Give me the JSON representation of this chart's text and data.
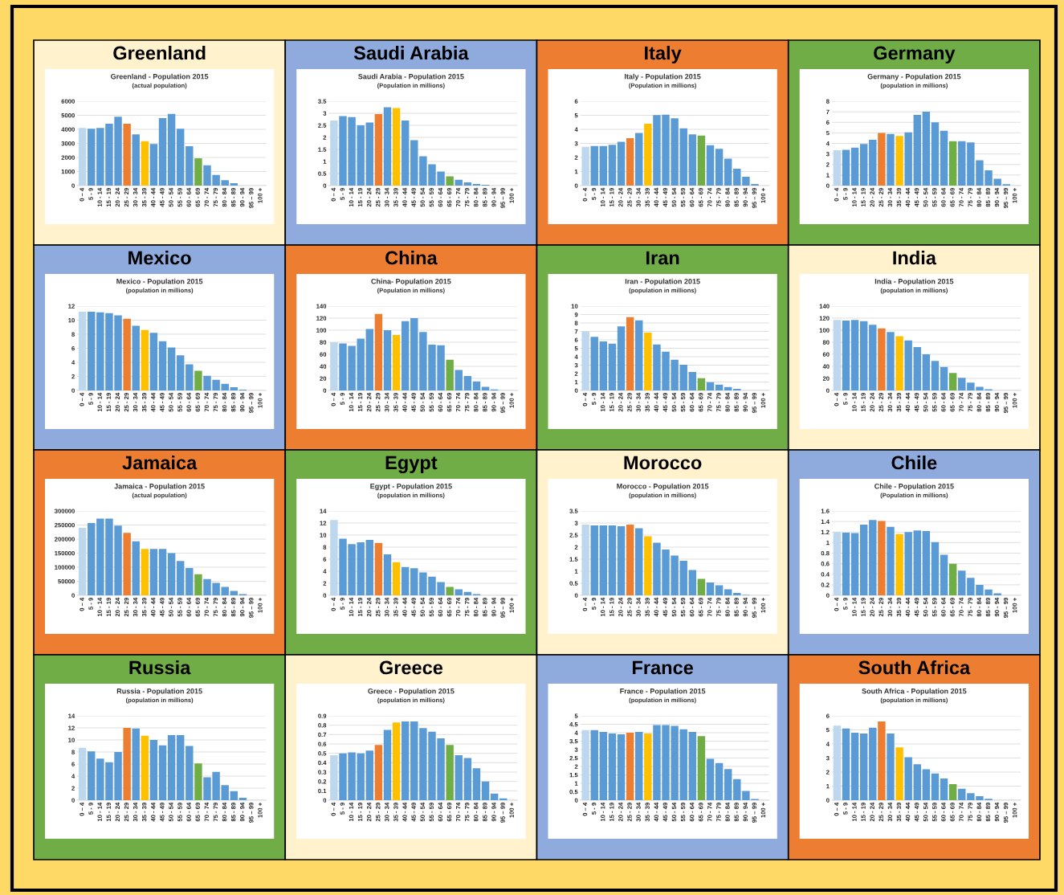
{
  "chart_data": [
    {
      "type": "bar",
      "title": "Greenland",
      "subtitle": "Greenland - Population 2015",
      "annotations": [
        "(actual population)"
      ],
      "categories": [
        "0 – 4",
        "5 - 9",
        "10 - 14",
        "15 - 19",
        "20 - 24",
        "25 - 29",
        "30 - 34",
        "35 - 39",
        "40 - 44",
        "45 - 49",
        "50 - 54",
        "55 - 59",
        "60 - 64",
        "65 - 69",
        "70 - 74",
        "75 - 79",
        "80 - 84",
        "85 - 89",
        "90 - 94",
        "95 – 99",
        "100 +"
      ],
      "values": [
        4100,
        4050,
        4100,
        4400,
        4900,
        4400,
        3650,
        3150,
        2950,
        4800,
        5100,
        4050,
        2800,
        1950,
        1450,
        750,
        380,
        170,
        null,
        null,
        null
      ],
      "colors": [
        "#bdd7ee",
        "#5b9bd5",
        "#5b9bd5",
        "#5b9bd5",
        "#5b9bd5",
        "#ed7d31",
        "#5b9bd5",
        "#ffc000",
        "#5b9bd5",
        "#5b9bd5",
        "#5b9bd5",
        "#5b9bd5",
        "#5b9bd5",
        "#70ad47",
        "#5b9bd5",
        "#5b9bd5",
        "#5b9bd5",
        "#5b9bd5",
        "#5b9bd5",
        "#5b9bd5",
        "#5b9bd5"
      ],
      "ylim": [
        0,
        6000
      ],
      "yticks": [
        0,
        1000,
        2000,
        3000,
        4000,
        5000,
        6000
      ],
      "grid": "y"
    },
    {
      "type": "bar",
      "title": "Saudi Arabia",
      "subtitle": "Saudi Arabia - Population 2015",
      "annotations": [
        "(Population in millions)"
      ],
      "categories": [
        "0 – 4",
        "5 - 9",
        "10 - 14",
        "15 - 19",
        "20 - 24",
        "25 - 29",
        "30 - 34",
        "35 - 39",
        "40 - 44",
        "45 - 49",
        "50 - 54",
        "55 - 59",
        "60 - 64",
        "65 - 69",
        "70 - 74",
        "75 - 79",
        "80 - 84",
        "85 - 89",
        "90 - 94",
        "95 – 99",
        "100 +"
      ],
      "values": [
        2.7,
        2.88,
        2.84,
        2.5,
        2.62,
        2.97,
        3.25,
        3.22,
        2.7,
        1.88,
        1.22,
        0.88,
        0.58,
        0.38,
        0.24,
        0.13,
        0.07,
        0.03,
        null,
        null,
        null
      ],
      "colors": [
        "#bdd7ee",
        "#5b9bd5",
        "#5b9bd5",
        "#5b9bd5",
        "#5b9bd5",
        "#ed7d31",
        "#5b9bd5",
        "#ffc000",
        "#5b9bd5",
        "#5b9bd5",
        "#5b9bd5",
        "#5b9bd5",
        "#5b9bd5",
        "#70ad47",
        "#5b9bd5",
        "#5b9bd5",
        "#5b9bd5",
        "#5b9bd5",
        "#5b9bd5",
        "#5b9bd5",
        "#5b9bd5"
      ],
      "ylim": [
        0,
        3.5
      ],
      "yticks": [
        0,
        0.5,
        1,
        1.5,
        2,
        2.5,
        3,
        3.5
      ],
      "grid": "y"
    },
    {
      "type": "bar",
      "title": "Italy",
      "subtitle": "Italy - Population 2015",
      "annotations": [
        "(Population in millions)"
      ],
      "categories": [
        "0 – 4",
        "5 - 9",
        "10 - 14",
        "15 - 19",
        "20 - 24",
        "25 - 29",
        "30 - 34",
        "35 - 39",
        "40 - 44",
        "45 - 49",
        "50 - 54",
        "55 - 59",
        "60 - 64",
        "65 - 69",
        "70 - 74",
        "75 - 79",
        "80 - 84",
        "85 - 89",
        "90 - 94",
        "95 – 99",
        "100 +"
      ],
      "values": [
        2.75,
        2.82,
        2.82,
        2.9,
        3.12,
        3.37,
        3.75,
        4.4,
        5.02,
        5.05,
        4.78,
        4.07,
        3.65,
        3.55,
        2.87,
        2.62,
        1.92,
        1.2,
        0.63,
        0.12,
        null
      ],
      "colors": [
        "#bdd7ee",
        "#5b9bd5",
        "#5b9bd5",
        "#5b9bd5",
        "#5b9bd5",
        "#ed7d31",
        "#5b9bd5",
        "#ffc000",
        "#5b9bd5",
        "#5b9bd5",
        "#5b9bd5",
        "#5b9bd5",
        "#5b9bd5",
        "#70ad47",
        "#5b9bd5",
        "#5b9bd5",
        "#5b9bd5",
        "#5b9bd5",
        "#5b9bd5",
        "#5b9bd5",
        "#5b9bd5"
      ],
      "ylim": [
        0,
        6
      ],
      "yticks": [
        0,
        1,
        2,
        3,
        4,
        5,
        6
      ],
      "grid": "y"
    },
    {
      "type": "bar",
      "title": "Germany",
      "subtitle": "Germany - Population 2015",
      "annotations": [
        "(population in millions)"
      ],
      "categories": [
        "0 – 4",
        "5 - 9",
        "10 - 14",
        "15 - 19",
        "20 - 24",
        "25 - 29",
        "30 - 34",
        "35 - 39",
        "40 - 44",
        "45 - 49",
        "50 - 54",
        "55 - 59",
        "60 - 64",
        "65 - 69",
        "70 - 74",
        "75 - 79",
        "80 - 84",
        "85 - 89",
        "90 - 94",
        "95 – 99",
        "100 +"
      ],
      "values": [
        3.35,
        3.4,
        3.6,
        3.95,
        4.35,
        5.0,
        4.9,
        4.7,
        5.05,
        6.7,
        7.0,
        6.0,
        5.2,
        4.2,
        4.2,
        4.1,
        2.4,
        1.45,
        0.65,
        0.13,
        null
      ],
      "colors": [
        "#bdd7ee",
        "#5b9bd5",
        "#5b9bd5",
        "#5b9bd5",
        "#5b9bd5",
        "#ed7d31",
        "#5b9bd5",
        "#ffc000",
        "#5b9bd5",
        "#5b9bd5",
        "#5b9bd5",
        "#5b9bd5",
        "#5b9bd5",
        "#70ad47",
        "#5b9bd5",
        "#5b9bd5",
        "#5b9bd5",
        "#5b9bd5",
        "#5b9bd5",
        "#5b9bd5",
        "#5b9bd5"
      ],
      "ylim": [
        0,
        8
      ],
      "yticks": [
        0,
        1,
        2,
        3,
        4,
        5,
        6,
        7,
        8
      ],
      "grid": "y"
    },
    {
      "type": "bar",
      "title": "Mexico",
      "subtitle": "Mexico - Population 2015",
      "annotations": [
        "(population in millions)"
      ],
      "categories": [
        "0 – 4",
        "5 - 9",
        "10 - 14",
        "15 - 19",
        "20 - 24",
        "25 - 29",
        "30 - 34",
        "35 - 39",
        "40 - 44",
        "45 - 49",
        "50 - 54",
        "55 - 59",
        "60 - 64",
        "65 - 69",
        "70 - 74",
        "75 - 79",
        "80 - 84",
        "85 - 89",
        "90 - 94",
        "95 – 99",
        "100 +"
      ],
      "values": [
        11.2,
        11.2,
        11.1,
        11.0,
        10.7,
        10.2,
        9.2,
        8.6,
        8.2,
        7.0,
        6.1,
        5.0,
        3.7,
        2.8,
        2.1,
        1.5,
        0.95,
        0.45,
        0.12,
        null,
        null
      ],
      "colors": [
        "#bdd7ee",
        "#5b9bd5",
        "#5b9bd5",
        "#5b9bd5",
        "#5b9bd5",
        "#ed7d31",
        "#5b9bd5",
        "#ffc000",
        "#5b9bd5",
        "#5b9bd5",
        "#5b9bd5",
        "#5b9bd5",
        "#5b9bd5",
        "#70ad47",
        "#5b9bd5",
        "#5b9bd5",
        "#5b9bd5",
        "#5b9bd5",
        "#5b9bd5",
        "#5b9bd5",
        "#5b9bd5"
      ],
      "ylim": [
        0,
        12
      ],
      "yticks": [
        0,
        2,
        4,
        6,
        8,
        10,
        12
      ],
      "grid": "y"
    },
    {
      "type": "bar",
      "title": "China",
      "subtitle": "China- Population 2015",
      "annotations": [
        "(Population in millions)"
      ],
      "categories": [
        "0 – 4",
        "5 - 9",
        "10 - 14",
        "15 - 19",
        "20 - 24",
        "25 - 29",
        "30 - 34",
        "35 - 39",
        "40 - 44",
        "45 - 49",
        "50 - 54",
        "55 - 59",
        "60 - 64",
        "65 - 69",
        "70 - 74",
        "75 - 79",
        "80 - 84",
        "85 - 89",
        "90 - 94",
        "95 – 99",
        "100 +"
      ],
      "values": [
        80,
        78,
        74,
        86,
        102,
        127,
        100,
        92,
        115,
        120,
        97,
        76,
        75,
        51,
        34,
        24,
        15,
        6,
        1.5,
        null,
        null
      ],
      "colors": [
        "#bdd7ee",
        "#5b9bd5",
        "#5b9bd5",
        "#5b9bd5",
        "#5b9bd5",
        "#ed7d31",
        "#5b9bd5",
        "#ffc000",
        "#5b9bd5",
        "#5b9bd5",
        "#5b9bd5",
        "#5b9bd5",
        "#5b9bd5",
        "#70ad47",
        "#5b9bd5",
        "#5b9bd5",
        "#5b9bd5",
        "#5b9bd5",
        "#5b9bd5",
        "#5b9bd5",
        "#5b9bd5"
      ],
      "ylim": [
        0,
        140
      ],
      "yticks": [
        0,
        20,
        40,
        60,
        80,
        100,
        120,
        140
      ],
      "grid": "y"
    },
    {
      "type": "bar",
      "title": "Iran",
      "subtitle": "Iran - Population 2015",
      "annotations": [
        "(population in millions)"
      ],
      "categories": [
        "0 – 4",
        "5 - 9",
        "10 - 14",
        "15 - 19",
        "20 - 24",
        "25 - 29",
        "30 - 34",
        "35 - 39",
        "40 - 44",
        "45 - 49",
        "50 - 54",
        "55 - 59",
        "60 - 64",
        "65 - 69",
        "70 - 74",
        "75 - 79",
        "80 - 84",
        "85 - 89",
        "90 - 94",
        "95 – 99",
        "100 +"
      ],
      "values": [
        7.0,
        6.35,
        5.8,
        5.55,
        7.6,
        8.7,
        8.3,
        6.85,
        5.45,
        4.6,
        3.65,
        3.05,
        2.2,
        1.45,
        0.98,
        0.7,
        0.4,
        0.18,
        null,
        null,
        null
      ],
      "colors": [
        "#bdd7ee",
        "#5b9bd5",
        "#5b9bd5",
        "#5b9bd5",
        "#5b9bd5",
        "#ed7d31",
        "#5b9bd5",
        "#ffc000",
        "#5b9bd5",
        "#5b9bd5",
        "#5b9bd5",
        "#5b9bd5",
        "#5b9bd5",
        "#70ad47",
        "#5b9bd5",
        "#5b9bd5",
        "#5b9bd5",
        "#5b9bd5",
        "#5b9bd5",
        "#5b9bd5",
        "#5b9bd5"
      ],
      "ylim": [
        0,
        10
      ],
      "yticks": [
        0,
        1,
        2,
        3,
        4,
        5,
        6,
        7,
        8,
        9,
        10
      ],
      "grid": "y"
    },
    {
      "type": "bar",
      "title": "India",
      "subtitle": "India - Population 2015",
      "annotations": [
        "(population in millions)"
      ],
      "categories": [
        "0 – 4",
        "5 - 9",
        "10 - 14",
        "15 - 19",
        "20 - 24",
        "25 - 29",
        "30 - 34",
        "35 - 39",
        "40 - 44",
        "45 - 49",
        "50 - 54",
        "55 - 59",
        "60 - 64",
        "65 - 69",
        "70 - 74",
        "75 - 79",
        "80 - 84",
        "85 - 89",
        "90 - 94",
        "95 – 99",
        "100 +"
      ],
      "values": [
        117,
        116,
        117,
        115,
        109,
        103,
        97,
        90,
        83,
        72,
        60,
        49,
        39,
        29,
        21,
        13,
        6,
        2,
        null,
        null,
        null
      ],
      "colors": [
        "#bdd7ee",
        "#5b9bd5",
        "#5b9bd5",
        "#5b9bd5",
        "#5b9bd5",
        "#ed7d31",
        "#5b9bd5",
        "#ffc000",
        "#5b9bd5",
        "#5b9bd5",
        "#5b9bd5",
        "#5b9bd5",
        "#5b9bd5",
        "#70ad47",
        "#5b9bd5",
        "#5b9bd5",
        "#5b9bd5",
        "#5b9bd5",
        "#5b9bd5",
        "#5b9bd5",
        "#5b9bd5"
      ],
      "ylim": [
        0,
        140
      ],
      "yticks": [
        0,
        20,
        40,
        60,
        80,
        100,
        120,
        140
      ],
      "grid": "y"
    },
    {
      "type": "bar",
      "title": "Jamaica",
      "subtitle": "Jamaica - Population 2015",
      "annotations": [
        "(actual population)"
      ],
      "categories": [
        "0 – 4",
        "5 - 9",
        "10 - 14",
        "15 - 19",
        "20 - 24",
        "25 - 29",
        "30 - 34",
        "35 - 39",
        "40 - 44",
        "45 - 49",
        "50 - 54",
        "55 - 59",
        "60 - 64",
        "65 - 69",
        "70 - 74",
        "75 - 79",
        "80 - 84",
        "85 - 89",
        "90 - 94",
        "95 – 99",
        "100 +"
      ],
      "values": [
        240000,
        257000,
        273000,
        273000,
        248000,
        222000,
        192000,
        165000,
        165000,
        165000,
        150000,
        122000,
        97000,
        75000,
        58000,
        44000,
        30000,
        16000,
        4000,
        null,
        null
      ],
      "colors": [
        "#bdd7ee",
        "#5b9bd5",
        "#5b9bd5",
        "#5b9bd5",
        "#5b9bd5",
        "#ed7d31",
        "#5b9bd5",
        "#ffc000",
        "#5b9bd5",
        "#5b9bd5",
        "#5b9bd5",
        "#5b9bd5",
        "#5b9bd5",
        "#70ad47",
        "#5b9bd5",
        "#5b9bd5",
        "#5b9bd5",
        "#5b9bd5",
        "#5b9bd5",
        "#5b9bd5",
        "#5b9bd5"
      ],
      "ylim": [
        0,
        300000
      ],
      "yticks": [
        0,
        50000,
        100000,
        150000,
        200000,
        250000,
        300000
      ],
      "grid": "y"
    },
    {
      "type": "bar",
      "title": "Egypt",
      "subtitle": "Egypt - Population 2015",
      "annotations": [
        "(population in millions)"
      ],
      "categories": [
        "0 – 4",
        "5 - 9",
        "10 - 14",
        "15 - 19",
        "20 - 24",
        "25 - 29",
        "30 - 34",
        "35 - 39",
        "40 - 44",
        "45 - 49",
        "50 - 54",
        "55 - 59",
        "60 - 64",
        "65 - 69",
        "70 - 74",
        "75 - 79",
        "80 - 84",
        "85 - 89",
        "90 - 94",
        "95 – 99",
        "100 +"
      ],
      "values": [
        12.5,
        9.4,
        8.5,
        8.8,
        9.2,
        8.7,
        6.8,
        5.5,
        4.7,
        4.5,
        3.8,
        3.1,
        2.2,
        1.4,
        1.0,
        0.55,
        0.2,
        null,
        null,
        null,
        null
      ],
      "colors": [
        "#bdd7ee",
        "#5b9bd5",
        "#5b9bd5",
        "#5b9bd5",
        "#5b9bd5",
        "#ed7d31",
        "#5b9bd5",
        "#ffc000",
        "#5b9bd5",
        "#5b9bd5",
        "#5b9bd5",
        "#5b9bd5",
        "#5b9bd5",
        "#70ad47",
        "#5b9bd5",
        "#5b9bd5",
        "#5b9bd5",
        "#5b9bd5",
        "#5b9bd5",
        "#5b9bd5",
        "#5b9bd5"
      ],
      "ylim": [
        0,
        14
      ],
      "yticks": [
        0,
        2,
        4,
        6,
        8,
        10,
        12,
        14
      ],
      "grid": "y"
    },
    {
      "type": "bar",
      "title": "Morocco",
      "subtitle": "Morocco - Population 2015",
      "annotations": [
        "(population in millions)"
      ],
      "categories": [
        "0 – 4",
        "5 - 9",
        "10 - 14",
        "15 - 19",
        "20 - 24",
        "25 - 29",
        "30 - 34",
        "35 - 39",
        "40 - 44",
        "45 - 49",
        "50 - 54",
        "55 - 59",
        "60 - 64",
        "65 - 69",
        "70 - 74",
        "75 - 79",
        "80 - 84",
        "85 - 89",
        "90 - 94",
        "95 – 99",
        "100 +"
      ],
      "values": [
        2.93,
        2.9,
        2.9,
        2.9,
        2.87,
        2.93,
        2.78,
        2.45,
        2.18,
        1.9,
        1.65,
        1.43,
        1.05,
        0.68,
        0.53,
        0.42,
        0.25,
        0.1,
        0.02,
        null,
        null
      ],
      "colors": [
        "#bdd7ee",
        "#5b9bd5",
        "#5b9bd5",
        "#5b9bd5",
        "#5b9bd5",
        "#ed7d31",
        "#5b9bd5",
        "#ffc000",
        "#5b9bd5",
        "#5b9bd5",
        "#5b9bd5",
        "#5b9bd5",
        "#5b9bd5",
        "#70ad47",
        "#5b9bd5",
        "#5b9bd5",
        "#5b9bd5",
        "#5b9bd5",
        "#5b9bd5",
        "#5b9bd5",
        "#5b9bd5"
      ],
      "ylim": [
        0,
        3.5
      ],
      "yticks": [
        0,
        0.5,
        1,
        1.5,
        2,
        2.5,
        3,
        3.5
      ],
      "grid": "y"
    },
    {
      "type": "bar",
      "title": "Chile",
      "subtitle": "Chile - Population 2015",
      "annotations": [
        "(Population in millions)"
      ],
      "categories": [
        "0 – 4",
        "5 - 9",
        "10 - 14",
        "15 - 19",
        "20 - 24",
        "25 - 29",
        "30 - 34",
        "35 - 39",
        "40 - 44",
        "45 - 49",
        "50 - 54",
        "55 - 59",
        "60 - 64",
        "65 - 69",
        "70 - 74",
        "75 - 79",
        "80 - 84",
        "85 - 89",
        "90 - 94",
        "95 – 99",
        "100 +"
      ],
      "values": [
        1.2,
        1.19,
        1.18,
        1.34,
        1.43,
        1.41,
        1.3,
        1.16,
        1.2,
        1.23,
        1.22,
        1.01,
        0.77,
        0.6,
        0.47,
        0.33,
        0.2,
        0.11,
        0.04,
        null,
        null
      ],
      "colors": [
        "#bdd7ee",
        "#5b9bd5",
        "#5b9bd5",
        "#5b9bd5",
        "#5b9bd5",
        "#ed7d31",
        "#5b9bd5",
        "#ffc000",
        "#5b9bd5",
        "#5b9bd5",
        "#5b9bd5",
        "#5b9bd5",
        "#5b9bd5",
        "#70ad47",
        "#5b9bd5",
        "#5b9bd5",
        "#5b9bd5",
        "#5b9bd5",
        "#5b9bd5",
        "#5b9bd5",
        "#5b9bd5"
      ],
      "ylim": [
        0,
        1.6
      ],
      "yticks": [
        0,
        0.2,
        0.4,
        0.6,
        0.8,
        1,
        1.2,
        1.4,
        1.6
      ],
      "grid": "y"
    },
    {
      "type": "bar",
      "title": "Russia",
      "subtitle": "Russia - Population 2015",
      "annotations": [
        "(population in millions)"
      ],
      "categories": [
        "0 – 4",
        "5 - 9",
        "10 - 14",
        "15 - 19",
        "20 - 24",
        "25 - 29",
        "30 - 34",
        "35 - 39",
        "40 - 44",
        "45 - 49",
        "50 - 54",
        "55 - 59",
        "60 - 64",
        "65 - 69",
        "70 - 74",
        "75 - 79",
        "80 - 84",
        "85 - 89",
        "90 - 94",
        "95 – 99",
        "100 +"
      ],
      "values": [
        8.7,
        8.1,
        6.9,
        6.3,
        8.0,
        12.0,
        11.9,
        10.7,
        10.0,
        9.1,
        10.8,
        10.8,
        9.0,
        6.1,
        3.8,
        4.7,
        2.5,
        1.5,
        0.4,
        null,
        null
      ],
      "colors": [
        "#bdd7ee",
        "#5b9bd5",
        "#5b9bd5",
        "#5b9bd5",
        "#5b9bd5",
        "#ed7d31",
        "#5b9bd5",
        "#ffc000",
        "#5b9bd5",
        "#5b9bd5",
        "#5b9bd5",
        "#5b9bd5",
        "#5b9bd5",
        "#70ad47",
        "#5b9bd5",
        "#5b9bd5",
        "#5b9bd5",
        "#5b9bd5",
        "#5b9bd5",
        "#5b9bd5",
        "#5b9bd5"
      ],
      "ylim": [
        0,
        14
      ],
      "yticks": [
        0,
        2,
        4,
        6,
        8,
        10,
        12,
        14
      ],
      "grid": "y"
    },
    {
      "type": "bar",
      "title": "Greece",
      "subtitle": "Greece - Population 2015",
      "annotations": [
        "(population in millions)"
      ],
      "categories": [
        "0 – 4",
        "5 - 9",
        "10 - 14",
        "15 - 19",
        "20 - 24",
        "25 - 29",
        "30 - 34",
        "35 - 39",
        "40 - 44",
        "45 - 49",
        "50 - 54",
        "55 - 59",
        "60 - 64",
        "65 - 69",
        "70 - 74",
        "75 - 79",
        "80 - 84",
        "85 - 89",
        "90 - 94",
        "95 – 99",
        "100 +"
      ],
      "values": [
        0.48,
        0.5,
        0.51,
        0.5,
        0.53,
        0.59,
        0.75,
        0.83,
        0.84,
        0.84,
        0.77,
        0.73,
        0.66,
        0.59,
        0.48,
        0.45,
        0.34,
        0.2,
        0.07,
        0.02,
        null
      ],
      "colors": [
        "#bdd7ee",
        "#5b9bd5",
        "#5b9bd5",
        "#5b9bd5",
        "#5b9bd5",
        "#ed7d31",
        "#5b9bd5",
        "#ffc000",
        "#5b9bd5",
        "#5b9bd5",
        "#5b9bd5",
        "#5b9bd5",
        "#5b9bd5",
        "#70ad47",
        "#5b9bd5",
        "#5b9bd5",
        "#5b9bd5",
        "#5b9bd5",
        "#5b9bd5",
        "#5b9bd5",
        "#5b9bd5"
      ],
      "ylim": [
        0,
        0.9
      ],
      "yticks": [
        0,
        0.1,
        0.2,
        0.3,
        0.4,
        0.5,
        0.6,
        0.7,
        0.8,
        0.9
      ],
      "grid": "y"
    },
    {
      "type": "bar",
      "title": "France",
      "subtitle": "France - Population 2015",
      "annotations": [
        "(population in millions)"
      ],
      "categories": [
        "0 – 4",
        "5 - 9",
        "10 - 14",
        "15 - 19",
        "20 - 24",
        "25 - 29",
        "30 - 34",
        "35 - 39",
        "40 - 44",
        "45 - 49",
        "50 - 54",
        "55 - 59",
        "60 - 64",
        "65 - 69",
        "70 - 74",
        "75 - 79",
        "80 - 84",
        "85 - 89",
        "90 - 94",
        "95 – 99",
        "100 +"
      ],
      "values": [
        4.15,
        4.15,
        4.05,
        3.95,
        3.9,
        4.0,
        4.05,
        3.95,
        4.45,
        4.45,
        4.4,
        4.2,
        4.05,
        3.8,
        2.45,
        2.2,
        1.85,
        1.25,
        0.55,
        0.07,
        null
      ],
      "colors": [
        "#bdd7ee",
        "#5b9bd5",
        "#5b9bd5",
        "#5b9bd5",
        "#5b9bd5",
        "#ed7d31",
        "#5b9bd5",
        "#ffc000",
        "#5b9bd5",
        "#5b9bd5",
        "#5b9bd5",
        "#5b9bd5",
        "#5b9bd5",
        "#70ad47",
        "#5b9bd5",
        "#5b9bd5",
        "#5b9bd5",
        "#5b9bd5",
        "#5b9bd5",
        "#5b9bd5",
        "#5b9bd5"
      ],
      "ylim": [
        0,
        5
      ],
      "yticks": [
        0,
        0.5,
        1,
        1.5,
        2,
        2.5,
        3,
        3.5,
        4,
        4.5,
        5
      ],
      "grid": "y"
    },
    {
      "type": "bar",
      "title": "South Africa",
      "subtitle": "South Africa - Population 2015",
      "annotations": [
        "(population in millions)"
      ],
      "categories": [
        "0 – 4",
        "5 - 9",
        "10 - 14",
        "15 - 19",
        "20 - 24",
        "25 - 29",
        "30 - 34",
        "35 - 39",
        "40 - 44",
        "45 - 49",
        "50 - 54",
        "55 - 59",
        "60 - 64",
        "65 - 69",
        "70 - 74",
        "75 - 79",
        "80 - 84",
        "85 - 89",
        "90 - 94",
        "95 – 99",
        "100 +"
      ],
      "values": [
        5.3,
        5.1,
        4.8,
        4.75,
        5.15,
        5.6,
        4.75,
        3.75,
        3.05,
        2.55,
        2.2,
        1.9,
        1.55,
        1.15,
        0.82,
        0.5,
        0.28,
        0.1,
        null,
        null,
        null
      ],
      "colors": [
        "#bdd7ee",
        "#5b9bd5",
        "#5b9bd5",
        "#5b9bd5",
        "#5b9bd5",
        "#ed7d31",
        "#5b9bd5",
        "#ffc000",
        "#5b9bd5",
        "#5b9bd5",
        "#5b9bd5",
        "#5b9bd5",
        "#5b9bd5",
        "#70ad47",
        "#5b9bd5",
        "#5b9bd5",
        "#5b9bd5",
        "#5b9bd5",
        "#5b9bd5",
        "#5b9bd5",
        "#5b9bd5"
      ],
      "ylim": [
        0,
        6
      ],
      "yticks": [
        0,
        1,
        2,
        3,
        4,
        5,
        6
      ],
      "grid": "y"
    }
  ]
}
